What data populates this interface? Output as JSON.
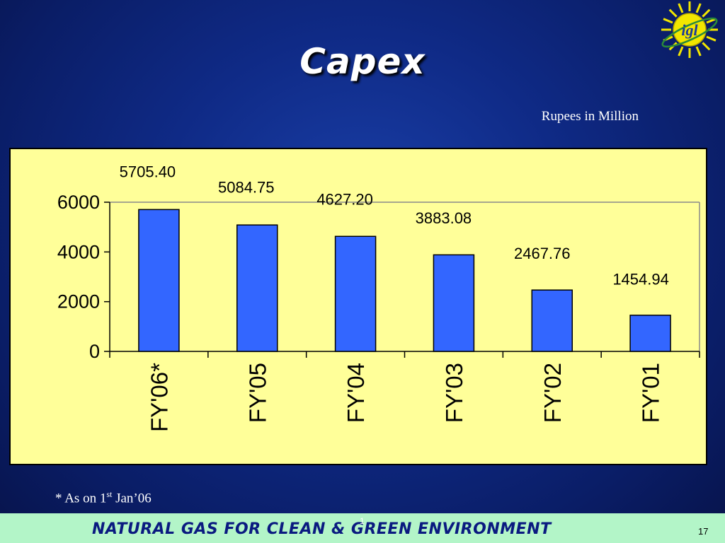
{
  "slide": {
    "title": "Capex",
    "units": "Rupees in Million",
    "footnote_prefix": "* As on 1",
    "footnote_sup": "st",
    "footnote_suffix": " Jan’06",
    "footer_text": "NATURAL GAS FOR CLEAN & GREEN ENVIRONMENT",
    "footer_mark": "1",
    "page_number": "17",
    "logo_text": "igl"
  },
  "colors": {
    "background": "#0f2a86",
    "plot_area": "#ffff99",
    "bar_fill": "#3366ff",
    "footer_bar": "#b3f5c8",
    "footer_text": "#0a1a80",
    "logo_sun": "#f2e600"
  },
  "chart_data": {
    "type": "bar",
    "categories": [
      "FY'06*",
      "FY'05",
      "FY'04",
      "FY'03",
      "FY'02",
      "FY'01"
    ],
    "values": [
      5705.4,
      5084.75,
      4627.2,
      3883.08,
      2467.76,
      1454.94
    ],
    "value_labels": [
      "5705.40",
      "5084.75",
      "4627.20",
      "3883.08",
      "2467.76",
      "1454.94"
    ],
    "yticks": [
      "0",
      "2000",
      "4000",
      "6000"
    ],
    "ytick_values": [
      0,
      2000,
      4000,
      6000
    ],
    "ylim": [
      0,
      6000
    ],
    "grid": false,
    "legend": "none"
  }
}
